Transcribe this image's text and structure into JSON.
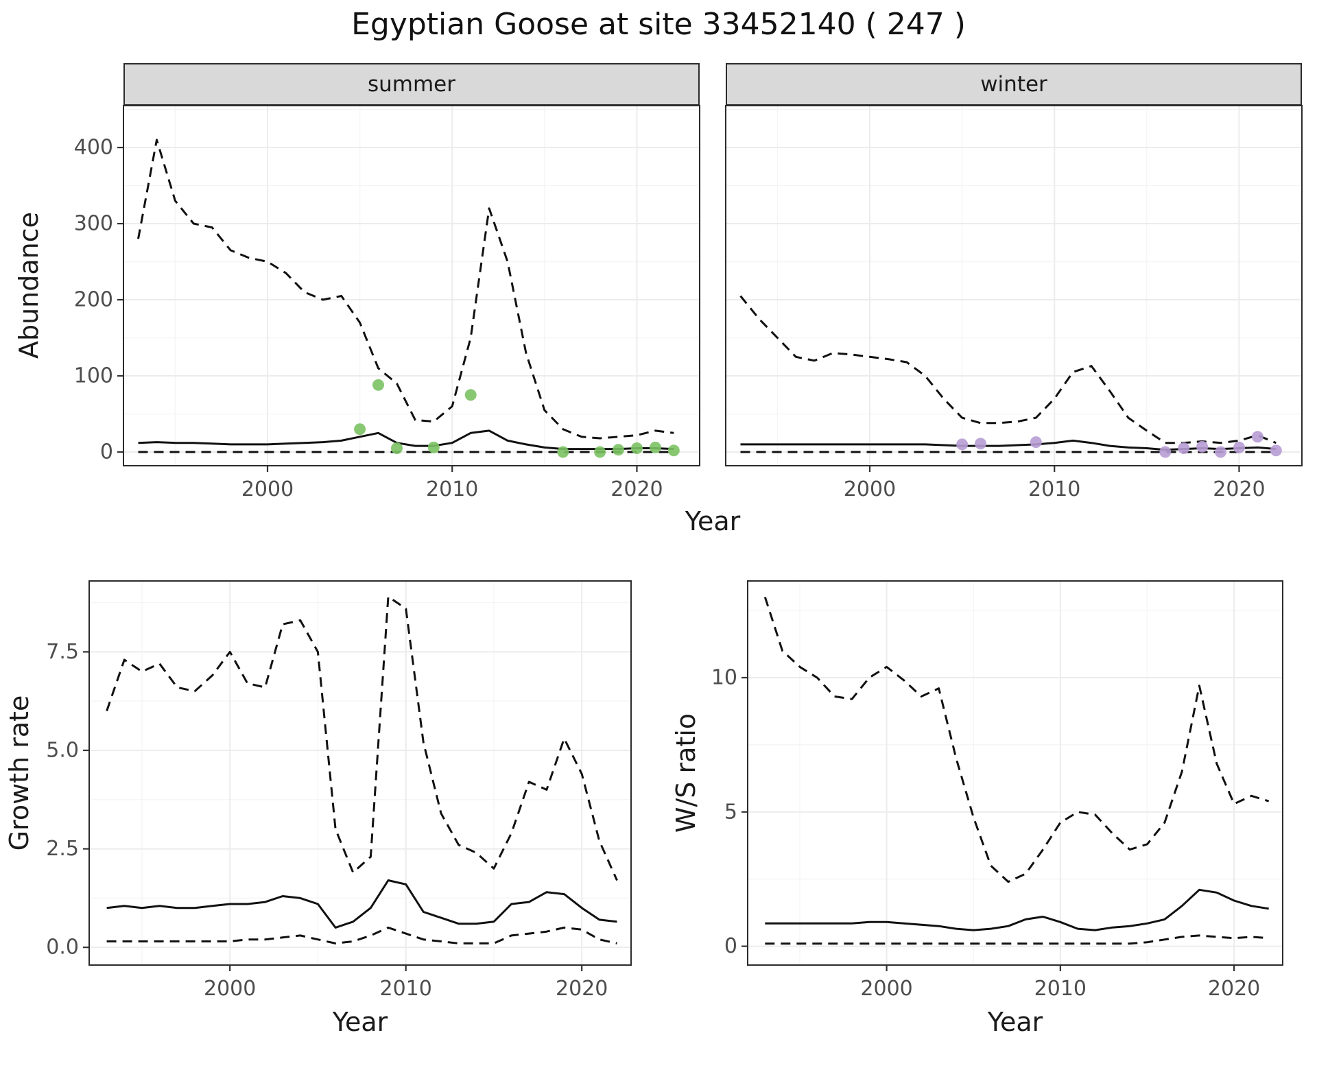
{
  "title": "Egyptian Goose at site 33452140 ( 247 )",
  "facets": {
    "summer": "summer",
    "winter": "winter"
  },
  "axis_labels": {
    "abundance": "Abundance",
    "year_top": "Year",
    "growth": "Growth rate",
    "year_growth": "Year",
    "ws": "W/S ratio",
    "year_ws": "Year"
  },
  "colors": {
    "line": "#111111",
    "summer_points": "#7cc264",
    "winter_points": "#b79cd4",
    "strip_bg": "#d9d9d9",
    "tick_text": "#4d4d4d"
  },
  "chart_data": [
    {
      "id": "abundance-summer",
      "type": "line",
      "facet": "summer",
      "xlabel": "Year",
      "ylabel": "Abundance",
      "xlim": [
        1992.2,
        2023.4
      ],
      "ylim": [
        -18,
        455
      ],
      "xticks": [
        2000,
        2010,
        2020
      ],
      "yticks": [
        0,
        100,
        200,
        300,
        400
      ],
      "ytick_labels": [
        "0",
        "100",
        "200",
        "300",
        "400"
      ],
      "show_ytick_labels": true,
      "x": [
        1993,
        1994,
        1995,
        1996,
        1997,
        1998,
        1999,
        2000,
        2001,
        2002,
        2003,
        2004,
        2005,
        2006,
        2007,
        2008,
        2009,
        2010,
        2011,
        2012,
        2013,
        2014,
        2015,
        2016,
        2017,
        2018,
        2019,
        2020,
        2021,
        2022
      ],
      "series": [
        {
          "name": "upper_ci",
          "style": "dashed",
          "values": [
            280,
            410,
            330,
            300,
            295,
            265,
            255,
            250,
            235,
            210,
            200,
            205,
            170,
            110,
            90,
            42,
            40,
            60,
            150,
            320,
            250,
            130,
            55,
            30,
            20,
            18,
            20,
            22,
            28,
            25
          ]
        },
        {
          "name": "estimate",
          "style": "solid",
          "values": [
            12,
            13,
            12,
            12,
            11,
            10,
            10,
            10,
            11,
            12,
            13,
            15,
            20,
            25,
            12,
            8,
            8,
            12,
            25,
            28,
            15,
            10,
            6,
            4,
            4,
            4,
            4,
            5,
            5,
            4
          ]
        },
        {
          "name": "lower_ci",
          "style": "dashed",
          "values": [
            0,
            0,
            0,
            0,
            0,
            0,
            0,
            0,
            0,
            0,
            0,
            0,
            0,
            0,
            0,
            0,
            0,
            0,
            0,
            0,
            0,
            0,
            0,
            0,
            0,
            0,
            0,
            0,
            0,
            0
          ]
        }
      ],
      "points": {
        "name": "observed_counts_summer",
        "color": "#7cc264",
        "x": [
          2005,
          2006,
          2007,
          2009,
          2011,
          2016,
          2018,
          2019,
          2020,
          2021,
          2022
        ],
        "y": [
          30,
          88,
          5,
          6,
          75,
          0,
          0,
          3,
          5,
          6,
          2
        ]
      }
    },
    {
      "id": "abundance-winter",
      "type": "line",
      "facet": "winter",
      "xlabel": "Year",
      "ylabel": "Abundance",
      "xlim": [
        1992.2,
        2023.4
      ],
      "ylim": [
        -18,
        455
      ],
      "xticks": [
        2000,
        2010,
        2020
      ],
      "yticks": [
        0,
        100,
        200,
        300,
        400
      ],
      "ytick_labels": [
        "0",
        "100",
        "200",
        "300",
        "400"
      ],
      "show_ytick_labels": false,
      "x": [
        1993,
        1994,
        1995,
        1996,
        1997,
        1998,
        1999,
        2000,
        2001,
        2002,
        2003,
        2004,
        2005,
        2006,
        2007,
        2008,
        2009,
        2010,
        2011,
        2012,
        2013,
        2014,
        2015,
        2016,
        2017,
        2018,
        2019,
        2020,
        2021,
        2022
      ],
      "series": [
        {
          "name": "upper_ci",
          "style": "dashed",
          "values": [
            205,
            175,
            150,
            125,
            120,
            130,
            128,
            125,
            122,
            118,
            100,
            70,
            45,
            38,
            38,
            40,
            45,
            70,
            105,
            113,
            80,
            45,
            28,
            12,
            12,
            14,
            12,
            15,
            22,
            12
          ]
        },
        {
          "name": "estimate",
          "style": "solid",
          "values": [
            10,
            10,
            10,
            10,
            10,
            10,
            10,
            10,
            10,
            10,
            10,
            9,
            8,
            8,
            8,
            9,
            10,
            12,
            15,
            12,
            8,
            6,
            5,
            3,
            4,
            5,
            4,
            5,
            6,
            4
          ]
        },
        {
          "name": "lower_ci",
          "style": "dashed",
          "values": [
            0,
            0,
            0,
            0,
            0,
            0,
            0,
            0,
            0,
            0,
            0,
            0,
            0,
            0,
            0,
            0,
            0,
            0,
            0,
            0,
            0,
            0,
            0,
            0,
            0,
            0,
            0,
            0,
            0,
            0
          ]
        }
      ],
      "points": {
        "name": "observed_counts_winter",
        "color": "#b79cd4",
        "x": [
          2005,
          2006,
          2009,
          2016,
          2017,
          2018,
          2019,
          2020,
          2021,
          2022
        ],
        "y": [
          10,
          11,
          13,
          0,
          5,
          7,
          0,
          6,
          20,
          2
        ]
      }
    },
    {
      "id": "growth-rate",
      "type": "line",
      "facet": "",
      "xlabel": "Year",
      "ylabel": "Growth rate",
      "xlim": [
        1992.0,
        2022.8
      ],
      "ylim": [
        -0.45,
        9.3
      ],
      "xticks": [
        2000,
        2010,
        2020
      ],
      "yticks": [
        0,
        2.5,
        5,
        7.5
      ],
      "ytick_labels": [
        "0.0",
        "2.5",
        "5.0",
        "7.5"
      ],
      "show_ytick_labels": true,
      "x": [
        1993,
        1994,
        1995,
        1996,
        1997,
        1998,
        1999,
        2000,
        2001,
        2002,
        2003,
        2004,
        2005,
        2006,
        2007,
        2008,
        2009,
        2010,
        2011,
        2012,
        2013,
        2014,
        2015,
        2016,
        2017,
        2018,
        2019,
        2020,
        2021,
        2022
      ],
      "series": [
        {
          "name": "upper_ci",
          "style": "dashed",
          "values": [
            6.0,
            7.3,
            7.0,
            7.2,
            6.6,
            6.5,
            6.9,
            7.5,
            6.7,
            6.6,
            8.2,
            8.3,
            7.5,
            3.0,
            1.9,
            2.3,
            8.9,
            8.6,
            5.2,
            3.4,
            2.6,
            2.4,
            2.0,
            2.9,
            4.2,
            4.0,
            5.3,
            4.4,
            2.7,
            1.7
          ]
        },
        {
          "name": "estimate",
          "style": "solid",
          "values": [
            1.0,
            1.05,
            1.0,
            1.05,
            1.0,
            1.0,
            1.05,
            1.1,
            1.1,
            1.15,
            1.3,
            1.25,
            1.1,
            0.5,
            0.65,
            1.0,
            1.7,
            1.6,
            0.9,
            0.75,
            0.6,
            0.6,
            0.65,
            1.1,
            1.15,
            1.4,
            1.35,
            1.0,
            0.7,
            0.65
          ]
        },
        {
          "name": "lower_ci",
          "style": "dashed",
          "values": [
            0.15,
            0.15,
            0.15,
            0.15,
            0.15,
            0.15,
            0.15,
            0.15,
            0.2,
            0.2,
            0.25,
            0.3,
            0.2,
            0.1,
            0.15,
            0.3,
            0.5,
            0.35,
            0.2,
            0.15,
            0.1,
            0.1,
            0.1,
            0.3,
            0.35,
            0.4,
            0.5,
            0.45,
            0.2,
            0.1
          ]
        }
      ]
    },
    {
      "id": "ws-ratio",
      "type": "line",
      "facet": "",
      "xlabel": "Year",
      "ylabel": "W/S ratio",
      "xlim": [
        1992.0,
        2022.8
      ],
      "ylim": [
        -0.7,
        13.6
      ],
      "xticks": [
        2000,
        2010,
        2020
      ],
      "yticks": [
        0,
        5,
        10
      ],
      "ytick_labels": [
        "0",
        "5",
        "10"
      ],
      "show_ytick_labels": true,
      "x": [
        1993,
        1994,
        1995,
        1996,
        1997,
        1998,
        1999,
        2000,
        2001,
        2002,
        2003,
        2004,
        2005,
        2006,
        2007,
        2008,
        2009,
        2010,
        2011,
        2012,
        2013,
        2014,
        2015,
        2016,
        2017,
        2018,
        2019,
        2020,
        2021,
        2022
      ],
      "series": [
        {
          "name": "upper_ci",
          "style": "dashed",
          "values": [
            13.0,
            11.0,
            10.4,
            10.0,
            9.3,
            9.2,
            10.0,
            10.4,
            9.9,
            9.3,
            9.6,
            7.0,
            4.8,
            3.0,
            2.4,
            2.7,
            3.6,
            4.6,
            5.0,
            4.9,
            4.2,
            3.6,
            3.8,
            4.6,
            6.5,
            9.7,
            6.8,
            5.3,
            5.6,
            5.4
          ]
        },
        {
          "name": "estimate",
          "style": "solid",
          "values": [
            0.85,
            0.85,
            0.85,
            0.85,
            0.85,
            0.85,
            0.9,
            0.9,
            0.85,
            0.8,
            0.75,
            0.65,
            0.6,
            0.65,
            0.75,
            1.0,
            1.1,
            0.9,
            0.65,
            0.6,
            0.7,
            0.75,
            0.85,
            1.0,
            1.5,
            2.1,
            2.0,
            1.7,
            1.5,
            1.4
          ]
        },
        {
          "name": "lower_ci",
          "style": "dashed",
          "values": [
            0.1,
            0.1,
            0.1,
            0.1,
            0.1,
            0.1,
            0.1,
            0.1,
            0.1,
            0.1,
            0.1,
            0.1,
            0.1,
            0.1,
            0.1,
            0.1,
            0.1,
            0.1,
            0.1,
            0.1,
            0.1,
            0.1,
            0.15,
            0.25,
            0.35,
            0.4,
            0.35,
            0.3,
            0.35,
            0.3
          ]
        }
      ]
    }
  ]
}
